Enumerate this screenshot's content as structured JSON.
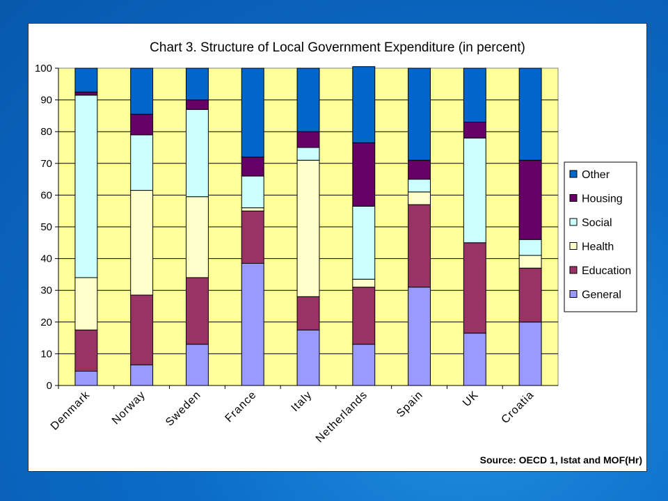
{
  "chart_data": {
    "type": "bar",
    "stacked": true,
    "title": "Chart 3. Structure of Local Government Expenditure (in percent)",
    "source": "Source: OECD 1, Istat and MOF(Hr)",
    "categories": [
      "Denmark",
      "Norway",
      "Sweden",
      "France",
      "Italy",
      "Netherlands",
      "Spain",
      "UK",
      "Croatia"
    ],
    "ylim": [
      0,
      100
    ],
    "yticks": [
      0,
      10,
      20,
      30,
      40,
      50,
      60,
      70,
      80,
      90,
      100
    ],
    "grid": true,
    "legend_position": "right",
    "plot_background": "#ffff99",
    "series": [
      {
        "name": "General",
        "color": "#9999ff",
        "values": [
          4.5,
          6.5,
          13,
          38.5,
          17.5,
          13,
          31,
          16.5,
          20
        ]
      },
      {
        "name": "Education",
        "color": "#993366",
        "values": [
          13,
          22,
          21,
          16.5,
          10.5,
          18,
          26,
          28.5,
          17
        ]
      },
      {
        "name": "Health",
        "color": "#ffffcc",
        "values": [
          16.5,
          33,
          25.5,
          1,
          43,
          2.5,
          4,
          0,
          4
        ]
      },
      {
        "name": "Social",
        "color": "#ccffff",
        "values": [
          57.5,
          17.5,
          27.5,
          10,
          4,
          23,
          4,
          33,
          5
        ]
      },
      {
        "name": "Housing",
        "color": "#660066",
        "values": [
          1,
          6.5,
          3,
          6,
          5,
          20,
          6,
          5,
          25
        ]
      },
      {
        "name": "Other",
        "color": "#0066cc",
        "values": [
          7.5,
          14.5,
          10,
          28,
          20,
          24,
          29,
          17,
          29
        ]
      }
    ]
  }
}
